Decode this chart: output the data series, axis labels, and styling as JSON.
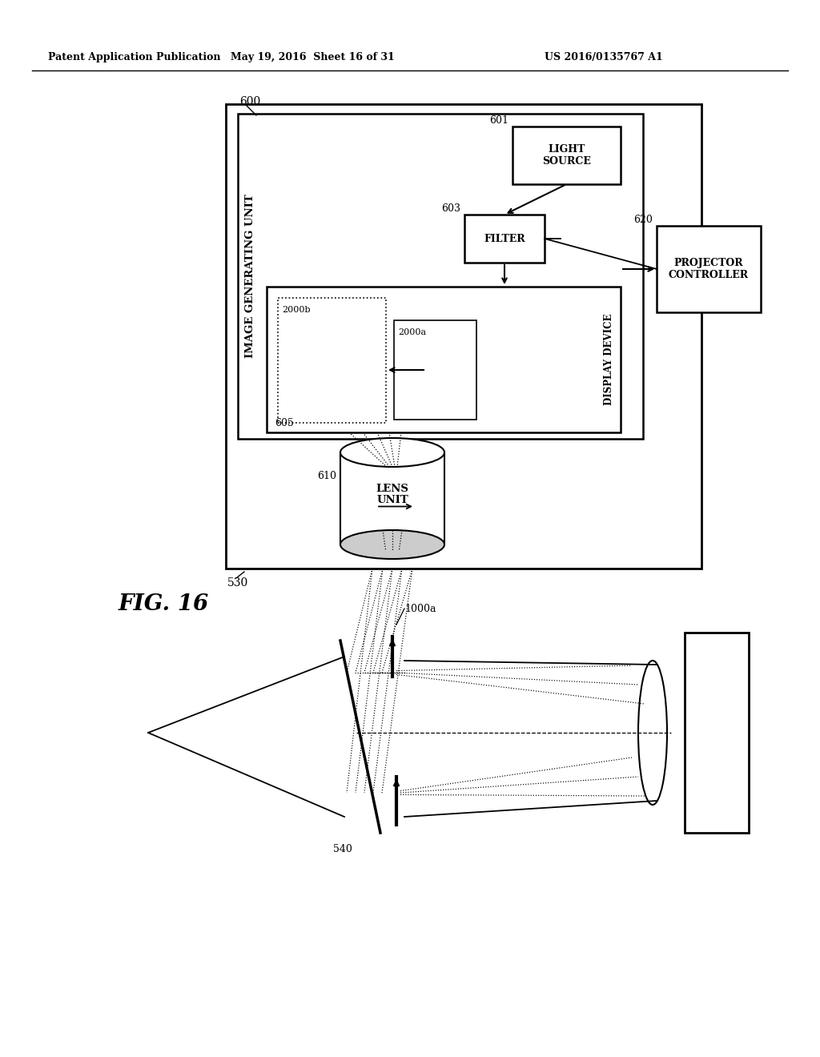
{
  "header_left": "Patent Application Publication",
  "header_mid": "May 19, 2016  Sheet 16 of 31",
  "header_right": "US 2016/0135767 A1",
  "fig_label": "FIG. 16",
  "background": "#ffffff",
  "line_color": "#000000",
  "label_530": "530",
  "label_600": "600",
  "label_601": "601",
  "label_603": "603",
  "label_605": "605",
  "label_610": "610",
  "label_620": "620",
  "label_1000a": "1000a",
  "label_540": "540",
  "label_2000a": "2000a",
  "label_2000b": "2000b",
  "text_image_gen": "IMAGE GENERATING UNIT",
  "text_light_source": "LIGHT\nSOURCE",
  "text_filter": "FILTER",
  "text_display": "DISPLAY DEVICE",
  "text_lens": "LENS\nUNIT",
  "text_projector_ctrl": "PROJECTOR\nCONTROLLER"
}
